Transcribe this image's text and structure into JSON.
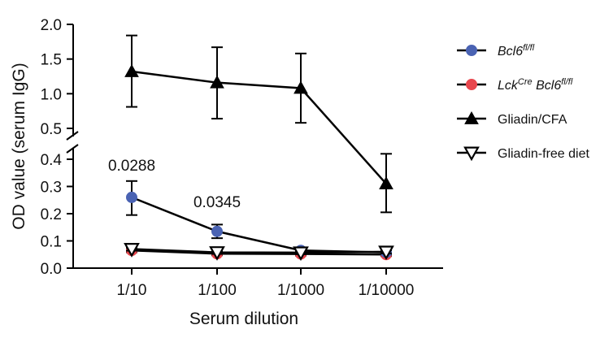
{
  "chart_data": {
    "type": "line",
    "xlabel": "Serum dilution",
    "ylabel": "OD value (serum IgG)",
    "categories": [
      "1/10",
      "1/100",
      "1/1000",
      "1/10000"
    ],
    "y_axis_break": {
      "lower_range": [
        0,
        0.4
      ],
      "upper_range": [
        0.5,
        2.0
      ]
    },
    "yticks_lower": [
      "0.0",
      "0.1",
      "0.2",
      "0.3",
      "0.4"
    ],
    "yticks_upper": [
      "0.5",
      "1.0",
      "1.5",
      "2.0"
    ],
    "series": [
      {
        "name_main": "Bcl6",
        "name_sup": "fl/fl",
        "name_prefix": "",
        "name_prefix_sup": "",
        "italic": true,
        "marker": "circle",
        "color": "#4a63b3",
        "values": [
          0.26,
          0.135,
          0.065,
          0.058
        ],
        "err_low": [
          0.195,
          0.11,
          0.055,
          0.05
        ],
        "err_high": [
          0.32,
          0.16,
          0.072,
          0.066
        ]
      },
      {
        "name_main": "Bcl6",
        "name_sup": "fl/fl",
        "name_prefix": "Lck",
        "name_prefix_sup": "Cre",
        "italic": true,
        "marker": "circle",
        "color": "#e8474e",
        "values": [
          0.065,
          0.053,
          0.052,
          0.05
        ],
        "err_low": [
          0.058,
          0.047,
          0.046,
          0.044
        ],
        "err_high": [
          0.072,
          0.06,
          0.058,
          0.056
        ]
      },
      {
        "name_main": "Gliadin/CFA",
        "name_sup": "",
        "name_prefix": "",
        "name_prefix_sup": "",
        "italic": false,
        "marker": "triangle-up",
        "color": "#000000",
        "values": [
          1.32,
          1.16,
          1.08,
          0.31
        ],
        "err_low": [
          0.81,
          0.64,
          0.58,
          0.205
        ],
        "err_high": [
          1.84,
          1.67,
          1.58,
          0.42
        ]
      },
      {
        "name_main": "Gliadin-free diet",
        "name_sup": "",
        "name_prefix": "",
        "name_prefix_sup": "",
        "italic": false,
        "marker": "triangle-down",
        "color": "#000000",
        "values": [
          0.07,
          0.058,
          0.057,
          0.06
        ],
        "err_low": [
          0.064,
          0.052,
          0.051,
          0.054
        ],
        "err_high": [
          0.076,
          0.064,
          0.063,
          0.066
        ]
      }
    ],
    "annotations": [
      {
        "text": "0.0288",
        "category": "1/10",
        "y": 0.35
      },
      {
        "text": "0.0345",
        "category": "1/100",
        "y": 0.215
      }
    ],
    "legend_position": "right",
    "grid": false
  }
}
